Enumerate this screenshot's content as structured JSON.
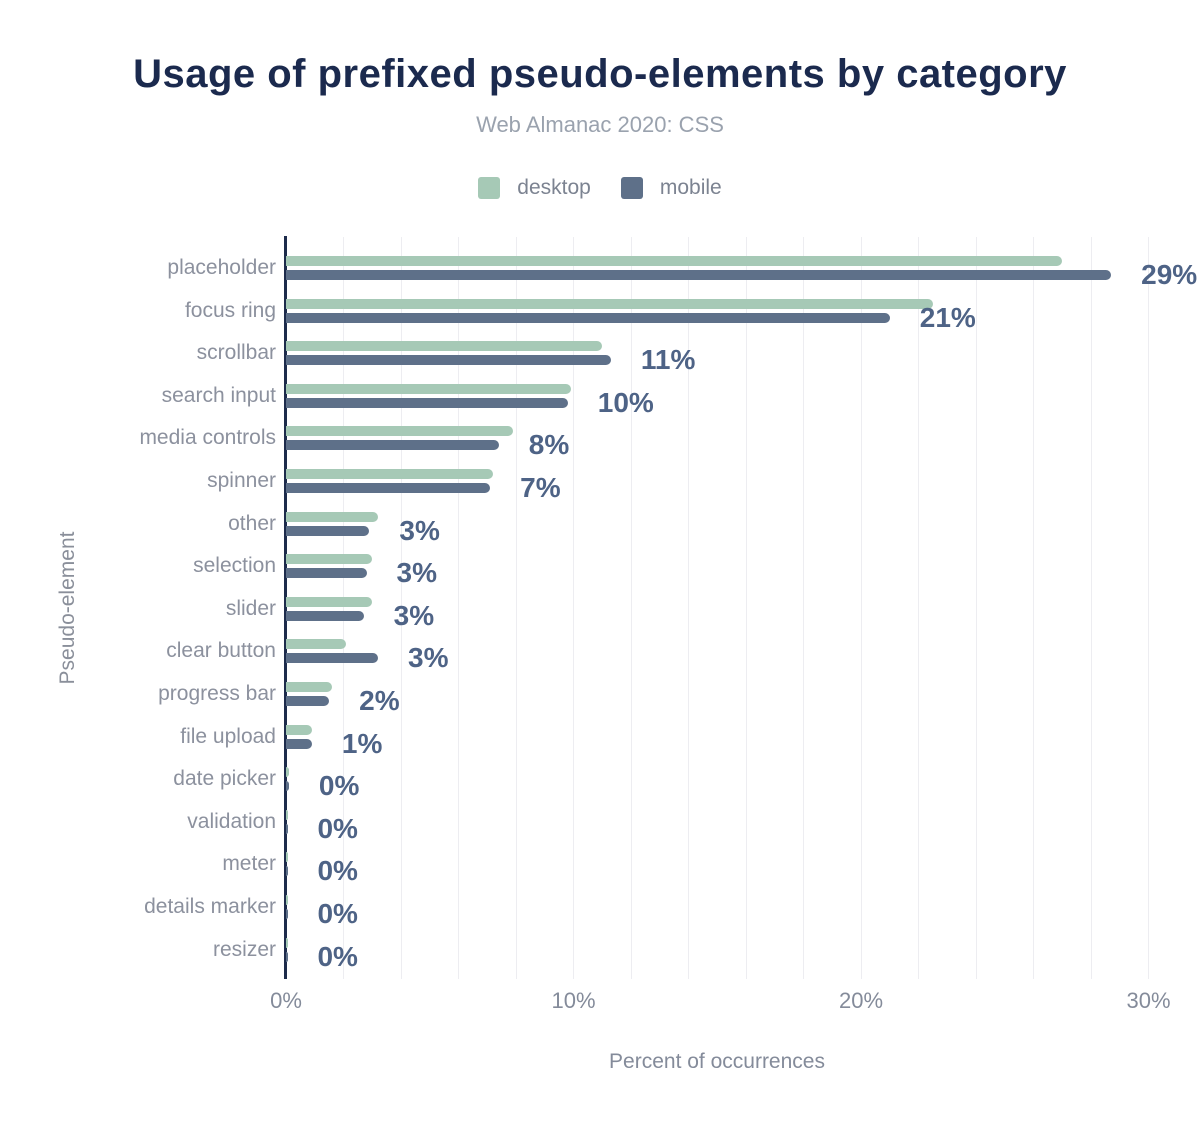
{
  "header": {
    "title": "Usage of prefixed pseudo-elements by category",
    "subtitle": "Web Almanac 2020: CSS"
  },
  "colors": {
    "title_text": "#1b2a4e",
    "subtitle_text": "#9aa2ae",
    "desktop_bar": "#a6c9b6",
    "mobile_bar": "#5e7089",
    "value_label_text": "#4e6386",
    "category_label_text": "#8c919e",
    "axis_line": "#1d2b4b",
    "gridline": "#ededf1",
    "tick_text": "#848b9a"
  },
  "chart_data": {
    "type": "bar",
    "orientation": "horizontal",
    "title": "Usage of prefixed pseudo-elements by category",
    "subtitle": "Web Almanac 2020: CSS",
    "xlabel": "Percent of occurrences",
    "ylabel": "Pseudo-element",
    "xlim": [
      0,
      30
    ],
    "xtick_labels": [
      "0%",
      "10%",
      "20%",
      "30%"
    ],
    "grid": "vertical",
    "grid_step_percent": 2,
    "legend_position": "top",
    "categories": [
      "placeholder",
      "focus ring",
      "scrollbar",
      "search input",
      "media controls",
      "spinner",
      "other",
      "selection",
      "slider",
      "clear button",
      "progress bar",
      "file upload",
      "date picker",
      "validation",
      "meter",
      "details marker",
      "resizer"
    ],
    "series": [
      {
        "name": "desktop",
        "color": "#a6c9b6",
        "values": [
          27.0,
          22.5,
          11.0,
          9.9,
          7.9,
          7.2,
          3.2,
          3.0,
          3.0,
          2.1,
          1.6,
          0.9,
          0.1,
          0.05,
          0.05,
          0.05,
          0.05
        ]
      },
      {
        "name": "mobile",
        "color": "#5e7089",
        "values": [
          28.7,
          21.0,
          11.3,
          9.8,
          7.4,
          7.1,
          2.9,
          2.8,
          2.7,
          3.2,
          1.5,
          0.9,
          0.1,
          0.05,
          0.05,
          0.05,
          0.05
        ]
      }
    ],
    "value_labels": [
      "29%",
      "21%",
      "11%",
      "10%",
      "8%",
      "7%",
      "3%",
      "3%",
      "3%",
      "3%",
      "2%",
      "1%",
      "0%",
      "0%",
      "0%",
      "0%",
      "0%"
    ]
  }
}
